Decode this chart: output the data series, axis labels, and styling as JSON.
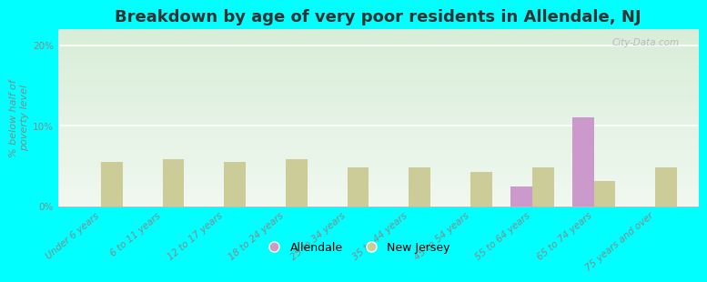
{
  "title": "Breakdown by age of very poor residents in Allendale, NJ",
  "ylabel": "% below half of\npoverty level",
  "categories": [
    "Under 6 years",
    "6 to 11 years",
    "12 to 17 years",
    "18 to 24 years",
    "25 to 34 years",
    "35 to 44 years",
    "45 to 54 years",
    "55 to 64 years",
    "65 to 74 years",
    "75 years and over"
  ],
  "allendale_values": [
    0,
    0,
    0,
    0,
    0,
    0,
    0,
    2.5,
    11.0,
    0
  ],
  "nj_values": [
    5.5,
    5.8,
    5.5,
    5.8,
    4.8,
    4.8,
    4.3,
    4.8,
    3.2,
    4.8
  ],
  "allendale_color": "#cc99cc",
  "nj_color": "#cccc99",
  "background_top": "#d8edd8",
  "background_bottom": "#f0f8f0",
  "bg_outer": "#00ffff",
  "ylim": [
    0,
    22
  ],
  "yticks": [
    0,
    10,
    20
  ],
  "ytick_labels": [
    "0%",
    "10%",
    "20%"
  ],
  "bar_width": 0.35,
  "title_fontsize": 13,
  "axis_label_fontsize": 8,
  "tick_fontsize": 7.5,
  "legend_labels": [
    "Allendale",
    "New Jersey"
  ],
  "watermark": "City-Data.com"
}
